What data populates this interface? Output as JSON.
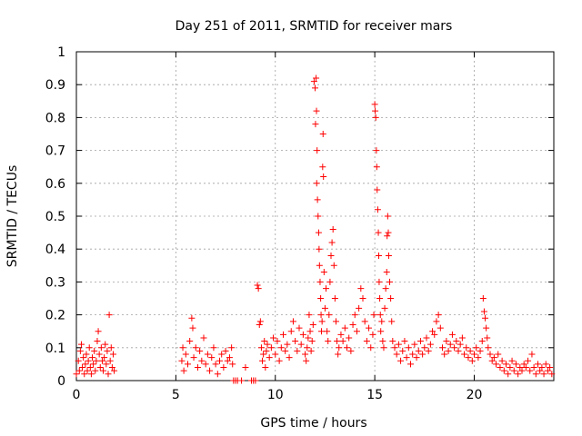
{
  "chart_data": {
    "type": "scatter",
    "title": "Day 251 of 2011, SRMTID for receiver mars",
    "xlabel": "GPS time / hours",
    "ylabel": "SRMTID / TECUs",
    "xlim": [
      0,
      24
    ],
    "ylim": [
      0,
      1
    ],
    "xticks": [
      0,
      5,
      10,
      15,
      20
    ],
    "xtick_labels": [
      "0",
      "5",
      "10",
      "15",
      "20"
    ],
    "yticks": [
      0,
      0.1,
      0.2,
      0.3,
      0.4,
      0.5,
      0.6,
      0.7,
      0.8,
      0.9,
      1
    ],
    "ytick_labels": [
      "0",
      "0.1",
      "0.2",
      "0.3",
      "0.4",
      "0.5",
      "0.6",
      "0.7",
      "0.8",
      "0.9",
      "1"
    ],
    "grid": true,
    "marker": "+",
    "color": "#ff0000",
    "series": [
      {
        "name": "SRMTID",
        "points": [
          [
            0.0,
            0.02
          ],
          [
            0.1,
            0.06
          ],
          [
            0.15,
            0.03
          ],
          [
            0.2,
            0.09
          ],
          [
            0.25,
            0.11
          ],
          [
            0.3,
            0.04
          ],
          [
            0.35,
            0.07
          ],
          [
            0.4,
            0.02
          ],
          [
            0.45,
            0.05
          ],
          [
            0.5,
            0.08
          ],
          [
            0.55,
            0.03
          ],
          [
            0.6,
            0.06
          ],
          [
            0.65,
            0.1
          ],
          [
            0.7,
            0.04
          ],
          [
            0.75,
            0.02
          ],
          [
            0.8,
            0.07
          ],
          [
            0.85,
            0.05
          ],
          [
            0.9,
            0.09
          ],
          [
            0.95,
            0.03
          ],
          [
            1.0,
            0.06
          ],
          [
            1.05,
            0.12
          ],
          [
            1.1,
            0.15
          ],
          [
            1.15,
            0.08
          ],
          [
            1.2,
            0.04
          ],
          [
            1.25,
            0.1
          ],
          [
            1.3,
            0.06
          ],
          [
            1.35,
            0.03
          ],
          [
            1.4,
            0.07
          ],
          [
            1.45,
            0.11
          ],
          [
            1.5,
            0.05
          ],
          [
            1.55,
            0.09
          ],
          [
            1.6,
            0.02
          ],
          [
            1.65,
            0.2
          ],
          [
            1.7,
            0.06
          ],
          [
            1.75,
            0.1
          ],
          [
            1.8,
            0.04
          ],
          [
            1.85,
            0.08
          ],
          [
            1.9,
            0.03
          ],
          [
            5.3,
            0.06
          ],
          [
            5.35,
            0.1
          ],
          [
            5.4,
            0.03
          ],
          [
            5.5,
            0.08
          ],
          [
            5.6,
            0.05
          ],
          [
            5.7,
            0.12
          ],
          [
            5.8,
            0.19
          ],
          [
            5.85,
            0.16
          ],
          [
            5.9,
            0.07
          ],
          [
            6.0,
            0.1
          ],
          [
            6.1,
            0.04
          ],
          [
            6.2,
            0.09
          ],
          [
            6.3,
            0.06
          ],
          [
            6.4,
            0.13
          ],
          [
            6.5,
            0.05
          ],
          [
            6.6,
            0.08
          ],
          [
            6.7,
            0.03
          ],
          [
            6.8,
            0.07
          ],
          [
            6.9,
            0.1
          ],
          [
            7.0,
            0.05
          ],
          [
            7.1,
            0.02
          ],
          [
            7.2,
            0.06
          ],
          [
            7.3,
            0.08
          ],
          [
            7.4,
            0.04
          ],
          [
            7.5,
            0.09
          ],
          [
            7.6,
            0.06
          ],
          [
            7.7,
            0.07
          ],
          [
            7.8,
            0.1
          ],
          [
            7.85,
            0.05
          ],
          [
            7.9,
            0.0
          ],
          [
            8.0,
            0.0
          ],
          [
            8.1,
            0.0
          ],
          [
            8.3,
            0.0
          ],
          [
            8.5,
            0.04
          ],
          [
            8.8,
            0.0
          ],
          [
            8.9,
            0.0
          ],
          [
            9.0,
            0.0
          ],
          [
            9.1,
            0.29
          ],
          [
            9.15,
            0.28
          ],
          [
            9.2,
            0.17
          ],
          [
            9.25,
            0.18
          ],
          [
            9.3,
            0.1
          ],
          [
            9.35,
            0.06
          ],
          [
            9.4,
            0.08
          ],
          [
            9.45,
            0.12
          ],
          [
            9.5,
            0.04
          ],
          [
            9.55,
            0.09
          ],
          [
            9.6,
            0.11
          ],
          [
            9.7,
            0.07
          ],
          [
            9.8,
            0.1
          ],
          [
            9.9,
            0.13
          ],
          [
            10.0,
            0.08
          ],
          [
            10.1,
            0.12
          ],
          [
            10.2,
            0.06
          ],
          [
            10.3,
            0.1
          ],
          [
            10.4,
            0.14
          ],
          [
            10.5,
            0.09
          ],
          [
            10.6,
            0.11
          ],
          [
            10.7,
            0.07
          ],
          [
            10.8,
            0.15
          ],
          [
            10.9,
            0.18
          ],
          [
            11.0,
            0.12
          ],
          [
            11.1,
            0.09
          ],
          [
            11.2,
            0.16
          ],
          [
            11.3,
            0.11
          ],
          [
            11.4,
            0.14
          ],
          [
            11.5,
            0.08
          ],
          [
            11.55,
            0.06
          ],
          [
            11.6,
            0.1
          ],
          [
            11.65,
            0.13
          ],
          [
            11.7,
            0.2
          ],
          [
            11.75,
            0.15
          ],
          [
            11.8,
            0.09
          ],
          [
            11.85,
            0.12
          ],
          [
            11.9,
            0.17
          ],
          [
            11.95,
            0.91
          ],
          [
            12.0,
            0.89
          ],
          [
            12.02,
            0.78
          ],
          [
            12.05,
            0.92
          ],
          [
            12.07,
            0.82
          ],
          [
            12.08,
            0.6
          ],
          [
            12.1,
            0.7
          ],
          [
            12.12,
            0.55
          ],
          [
            12.15,
            0.5
          ],
          [
            12.18,
            0.45
          ],
          [
            12.2,
            0.4
          ],
          [
            12.22,
            0.35
          ],
          [
            12.25,
            0.3
          ],
          [
            12.28,
            0.25
          ],
          [
            12.3,
            0.2
          ],
          [
            12.32,
            0.15
          ],
          [
            12.35,
            0.18
          ],
          [
            12.38,
            0.65
          ],
          [
            12.4,
            0.75
          ],
          [
            12.42,
            0.62
          ],
          [
            12.45,
            0.33
          ],
          [
            12.5,
            0.22
          ],
          [
            12.55,
            0.28
          ],
          [
            12.6,
            0.15
          ],
          [
            12.65,
            0.12
          ],
          [
            12.7,
            0.2
          ],
          [
            12.75,
            0.3
          ],
          [
            12.8,
            0.38
          ],
          [
            12.85,
            0.42
          ],
          [
            12.9,
            0.46
          ],
          [
            12.95,
            0.35
          ],
          [
            13.0,
            0.25
          ],
          [
            13.05,
            0.18
          ],
          [
            13.1,
            0.12
          ],
          [
            13.15,
            0.08
          ],
          [
            13.2,
            0.1
          ],
          [
            13.3,
            0.14
          ],
          [
            13.4,
            0.12
          ],
          [
            13.5,
            0.16
          ],
          [
            13.6,
            0.1
          ],
          [
            13.7,
            0.13
          ],
          [
            13.8,
            0.09
          ],
          [
            13.9,
            0.17
          ],
          [
            14.0,
            0.2
          ],
          [
            14.1,
            0.15
          ],
          [
            14.2,
            0.22
          ],
          [
            14.3,
            0.28
          ],
          [
            14.4,
            0.25
          ],
          [
            14.5,
            0.18
          ],
          [
            14.6,
            0.12
          ],
          [
            14.7,
            0.16
          ],
          [
            14.8,
            0.1
          ],
          [
            14.9,
            0.14
          ],
          [
            14.95,
            0.2
          ],
          [
            15.0,
            0.84
          ],
          [
            15.02,
            0.82
          ],
          [
            15.05,
            0.8
          ],
          [
            15.08,
            0.7
          ],
          [
            15.1,
            0.65
          ],
          [
            15.12,
            0.58
          ],
          [
            15.15,
            0.52
          ],
          [
            15.18,
            0.45
          ],
          [
            15.2,
            0.38
          ],
          [
            15.22,
            0.3
          ],
          [
            15.25,
            0.25
          ],
          [
            15.28,
            0.2
          ],
          [
            15.3,
            0.15
          ],
          [
            15.35,
            0.18
          ],
          [
            15.4,
            0.12
          ],
          [
            15.45,
            0.1
          ],
          [
            15.5,
            0.22
          ],
          [
            15.55,
            0.28
          ],
          [
            15.6,
            0.33
          ],
          [
            15.62,
            0.44
          ],
          [
            15.65,
            0.5
          ],
          [
            15.68,
            0.45
          ],
          [
            15.7,
            0.38
          ],
          [
            15.75,
            0.3
          ],
          [
            15.8,
            0.25
          ],
          [
            15.85,
            0.18
          ],
          [
            15.9,
            0.12
          ],
          [
            16.0,
            0.1
          ],
          [
            16.1,
            0.08
          ],
          [
            16.2,
            0.11
          ],
          [
            16.3,
            0.06
          ],
          [
            16.4,
            0.09
          ],
          [
            16.5,
            0.12
          ],
          [
            16.6,
            0.07
          ],
          [
            16.7,
            0.1
          ],
          [
            16.8,
            0.05
          ],
          [
            16.9,
            0.08
          ],
          [
            17.0,
            0.11
          ],
          [
            17.1,
            0.07
          ],
          [
            17.2,
            0.09
          ],
          [
            17.3,
            0.12
          ],
          [
            17.4,
            0.08
          ],
          [
            17.5,
            0.1
          ],
          [
            17.6,
            0.13
          ],
          [
            17.7,
            0.09
          ],
          [
            17.8,
            0.11
          ],
          [
            17.9,
            0.15
          ],
          [
            18.0,
            0.14
          ],
          [
            18.1,
            0.18
          ],
          [
            18.2,
            0.2
          ],
          [
            18.3,
            0.16
          ],
          [
            18.4,
            0.1
          ],
          [
            18.5,
            0.08
          ],
          [
            18.6,
            0.12
          ],
          [
            18.7,
            0.09
          ],
          [
            18.8,
            0.11
          ],
          [
            18.9,
            0.14
          ],
          [
            19.0,
            0.1
          ],
          [
            19.1,
            0.12
          ],
          [
            19.2,
            0.09
          ],
          [
            19.3,
            0.11
          ],
          [
            19.4,
            0.13
          ],
          [
            19.5,
            0.08
          ],
          [
            19.6,
            0.1
          ],
          [
            19.7,
            0.07
          ],
          [
            19.8,
            0.09
          ],
          [
            19.9,
            0.06
          ],
          [
            20.0,
            0.08
          ],
          [
            20.1,
            0.1
          ],
          [
            20.2,
            0.07
          ],
          [
            20.3,
            0.09
          ],
          [
            20.4,
            0.12
          ],
          [
            20.45,
            0.25
          ],
          [
            20.5,
            0.21
          ],
          [
            20.55,
            0.19
          ],
          [
            20.6,
            0.16
          ],
          [
            20.65,
            0.13
          ],
          [
            20.7,
            0.1
          ],
          [
            20.8,
            0.08
          ],
          [
            20.9,
            0.06
          ],
          [
            21.0,
            0.07
          ],
          [
            21.1,
            0.05
          ],
          [
            21.2,
            0.08
          ],
          [
            21.3,
            0.04
          ],
          [
            21.4,
            0.06
          ],
          [
            21.5,
            0.03
          ],
          [
            21.6,
            0.05
          ],
          [
            21.7,
            0.02
          ],
          [
            21.8,
            0.04
          ],
          [
            21.9,
            0.06
          ],
          [
            22.0,
            0.03
          ],
          [
            22.1,
            0.05
          ],
          [
            22.2,
            0.02
          ],
          [
            22.3,
            0.04
          ],
          [
            22.4,
            0.03
          ],
          [
            22.5,
            0.05
          ],
          [
            22.6,
            0.04
          ],
          [
            22.7,
            0.06
          ],
          [
            22.8,
            0.03
          ],
          [
            22.9,
            0.08
          ],
          [
            23.0,
            0.04
          ],
          [
            23.1,
            0.02
          ],
          [
            23.2,
            0.05
          ],
          [
            23.3,
            0.03
          ],
          [
            23.4,
            0.04
          ],
          [
            23.5,
            0.02
          ],
          [
            23.6,
            0.05
          ],
          [
            23.7,
            0.03
          ],
          [
            23.8,
            0.04
          ],
          [
            23.9,
            0.02
          ]
        ]
      }
    ]
  }
}
